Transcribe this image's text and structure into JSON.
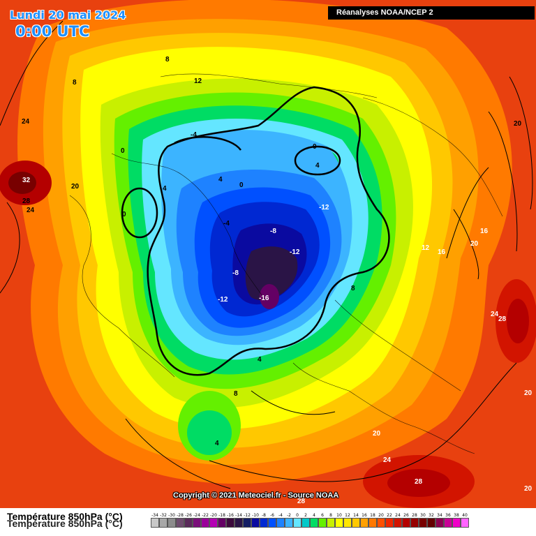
{
  "header": {
    "date": "Lundi 20 mai 2024",
    "time": "0:00 UTC",
    "source": "Réanalyses NOAA/NCEP 2"
  },
  "copyright": "Copyright © 2021 Meteociel.fr - Source NOAA",
  "footer": {
    "title": "Température 850hPa (°C)",
    "title_shadow": "Température 850hPa (°C)"
  },
  "legend": {
    "labels": [
      "-34",
      "-32",
      "-30",
      "-28",
      "-26",
      "-24",
      "-22",
      "-20",
      "-18",
      "-16",
      "-14",
      "-12",
      "-10",
      "-8",
      "-6",
      "-4",
      "-2",
      "0",
      "2",
      "4",
      "6",
      "8",
      "10",
      "12",
      "14",
      "16",
      "18",
      "20",
      "22",
      "24",
      "26",
      "28",
      "30",
      "32",
      "34",
      "36",
      "38",
      "40"
    ],
    "colors": [
      "#c8c8c8",
      "#a8a8a8",
      "#8c8c8c",
      "#6e4c6e",
      "#5a2a5a",
      "#7a107a",
      "#9a009a",
      "#b400b4",
      "#640064",
      "#3c0a3c",
      "#2a1446",
      "#141e64",
      "#0a0aa0",
      "#0028d2",
      "#0050ff",
      "#1e82ff",
      "#3cb4ff",
      "#64e6ff",
      "#00c8c8",
      "#00dc64",
      "#64f000",
      "#c8f000",
      "#ffff00",
      "#ffe600",
      "#ffc800",
      "#ffa000",
      "#ff7800",
      "#ff5000",
      "#f02800",
      "#d21400",
      "#b40000",
      "#960000",
      "#780000",
      "#640000",
      "#8c0050",
      "#c80096",
      "#f000c8",
      "#ff64ff"
    ]
  },
  "contour_labels": [
    {
      "v": "8"
    },
    {
      "v": "12"
    },
    {
      "v": "8"
    },
    {
      "v": "24"
    },
    {
      "v": "20"
    },
    {
      "v": "32"
    },
    {
      "v": "28"
    },
    {
      "v": "24"
    },
    {
      "v": "20"
    },
    {
      "v": "-4"
    },
    {
      "v": "0"
    },
    {
      "v": "0"
    },
    {
      "v": "4"
    },
    {
      "v": "4"
    },
    {
      "v": "4"
    },
    {
      "v": "0"
    },
    {
      "v": "0"
    },
    {
      "v": "-4"
    },
    {
      "v": "-12"
    },
    {
      "v": "-8"
    },
    {
      "v": "-12"
    },
    {
      "v": "-8"
    },
    {
      "v": "-12"
    },
    {
      "v": "-16"
    },
    {
      "v": "8"
    },
    {
      "v": "4"
    },
    {
      "v": "8"
    },
    {
      "v": "4"
    },
    {
      "v": "16"
    },
    {
      "v": "12"
    },
    {
      "v": "16"
    },
    {
      "v": "20"
    },
    {
      "v": "24"
    },
    {
      "v": "28"
    },
    {
      "v": "20"
    },
    {
      "v": "20"
    },
    {
      "v": "24"
    },
    {
      "v": "28"
    },
    {
      "v": "28"
    },
    {
      "v": "20"
    }
  ]
}
